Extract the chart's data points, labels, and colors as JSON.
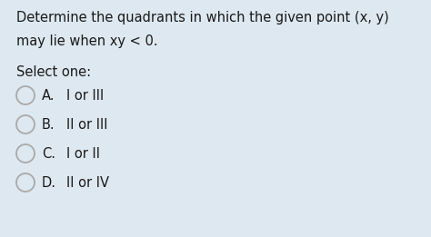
{
  "background_color": "#dde8f0",
  "question_line1": "Determine the quadrants in which the given point (x, y)",
  "question_line2": "may lie when xy < 0.",
  "select_label": "Select one:",
  "options": [
    {
      "letter": "A.",
      "text": "I or III"
    },
    {
      "letter": "B.",
      "text": "II or III"
    },
    {
      "letter": "C.",
      "text": "I or II"
    },
    {
      "letter": "D.",
      "text": "II or IV"
    }
  ],
  "text_color": "#1a1a1a",
  "circle_edge_color": "#aaaaaa",
  "font_size_question": 10.5,
  "font_size_select": 10.5,
  "font_size_options": 10.5,
  "fig_width": 4.74,
  "fig_height": 2.61,
  "dpi": 100
}
